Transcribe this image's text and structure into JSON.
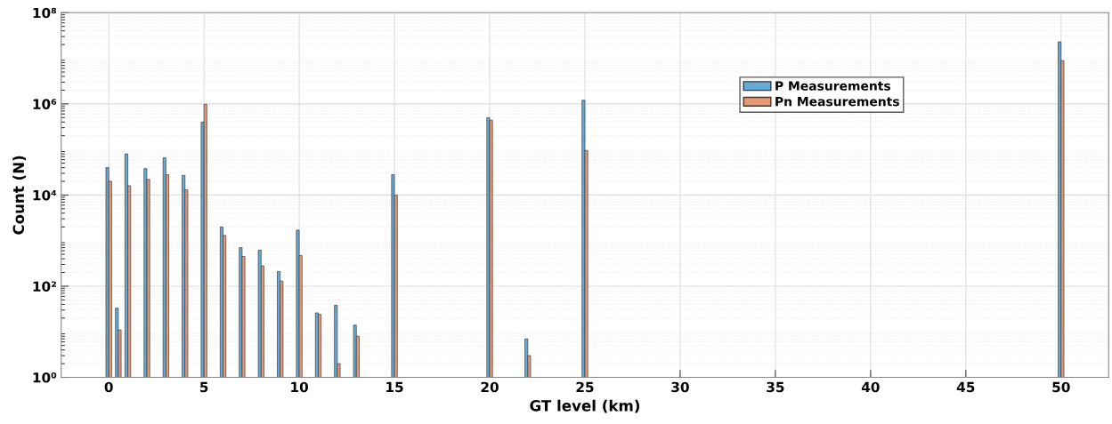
{
  "chart_data": {
    "type": "bar",
    "xlabel": "GT level (km)",
    "ylabel": "Count (N)",
    "x": [
      0,
      0.5,
      1,
      2,
      3,
      4,
      5,
      6,
      7,
      8,
      9,
      10,
      11,
      12,
      13,
      15,
      20,
      22,
      25,
      50
    ],
    "series": [
      {
        "name": "P Measurements",
        "color": "#66aad7",
        "values": [
          40000,
          33,
          80000,
          38000,
          66000,
          27000,
          400000,
          2000,
          700,
          620,
          210,
          1700,
          26,
          38,
          14,
          28000,
          500000,
          7,
          1200000,
          23000000
        ]
      },
      {
        "name": "Pn Measurements",
        "color": "#e89875",
        "values": [
          20000,
          11,
          16000,
          22000,
          28000,
          13000,
          980000,
          1300,
          450,
          280,
          130,
          470,
          24,
          2,
          8,
          10000,
          440000,
          3,
          95000,
          8900000
        ]
      }
    ],
    "log": "y",
    "xlim": [
      -2.5,
      52.5
    ],
    "xticks": [
      0,
      5,
      10,
      15,
      20,
      25,
      30,
      35,
      40,
      45,
      50
    ],
    "ylim": [
      1,
      100000000
    ],
    "yticks": [
      {
        "value": 1,
        "label": "10⁰"
      },
      {
        "value": 100,
        "label": "10²"
      },
      {
        "value": 10000,
        "label": "10⁴"
      },
      {
        "value": 1000000,
        "label": "10⁶"
      },
      {
        "value": 100000000,
        "label": "10⁸"
      }
    ],
    "grid": true,
    "legend": "top right"
  }
}
